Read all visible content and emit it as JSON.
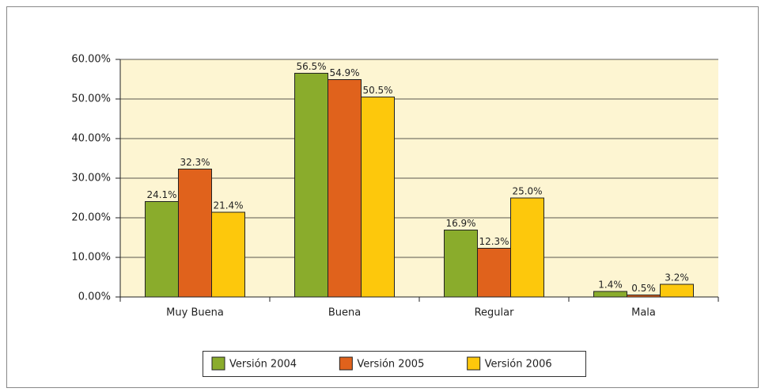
{
  "chart_data": {
    "type": "bar",
    "categories": [
      "Muy Buena",
      "Buena",
      "Regular",
      "Mala"
    ],
    "series": [
      {
        "name": "Versión 2004",
        "color": "#8aac2c",
        "values": [
          24.1,
          56.5,
          16.9,
          1.4
        ],
        "value_labels": [
          "24.1%",
          "56.5%",
          "16.9%",
          "1.4%"
        ]
      },
      {
        "name": "Versión 2005",
        "color": "#e0621c",
        "values": [
          32.3,
          54.9,
          12.3,
          0.5
        ],
        "value_labels": [
          "32.3%",
          "54.9%",
          "12.3%",
          "0.5%"
        ]
      },
      {
        "name": "Versión 2006",
        "color": "#fdc80c",
        "values": [
          21.4,
          50.5,
          25.0,
          3.2
        ],
        "value_labels": [
          "21.4%",
          "50.5%",
          "25.0%",
          "3.2%"
        ]
      }
    ],
    "ylim": [
      0,
      60
    ],
    "yticks": [
      {
        "value": 0,
        "label": "0.00%"
      },
      {
        "value": 10,
        "label": "10.00%"
      },
      {
        "value": 20,
        "label": "20.00%"
      },
      {
        "value": 30,
        "label": "30.00%"
      },
      {
        "value": 40,
        "label": "40.00%"
      },
      {
        "value": 50,
        "label": "50.00%"
      },
      {
        "value": 60,
        "label": "60.00%"
      }
    ],
    "grid": true,
    "legend": "bottom"
  }
}
